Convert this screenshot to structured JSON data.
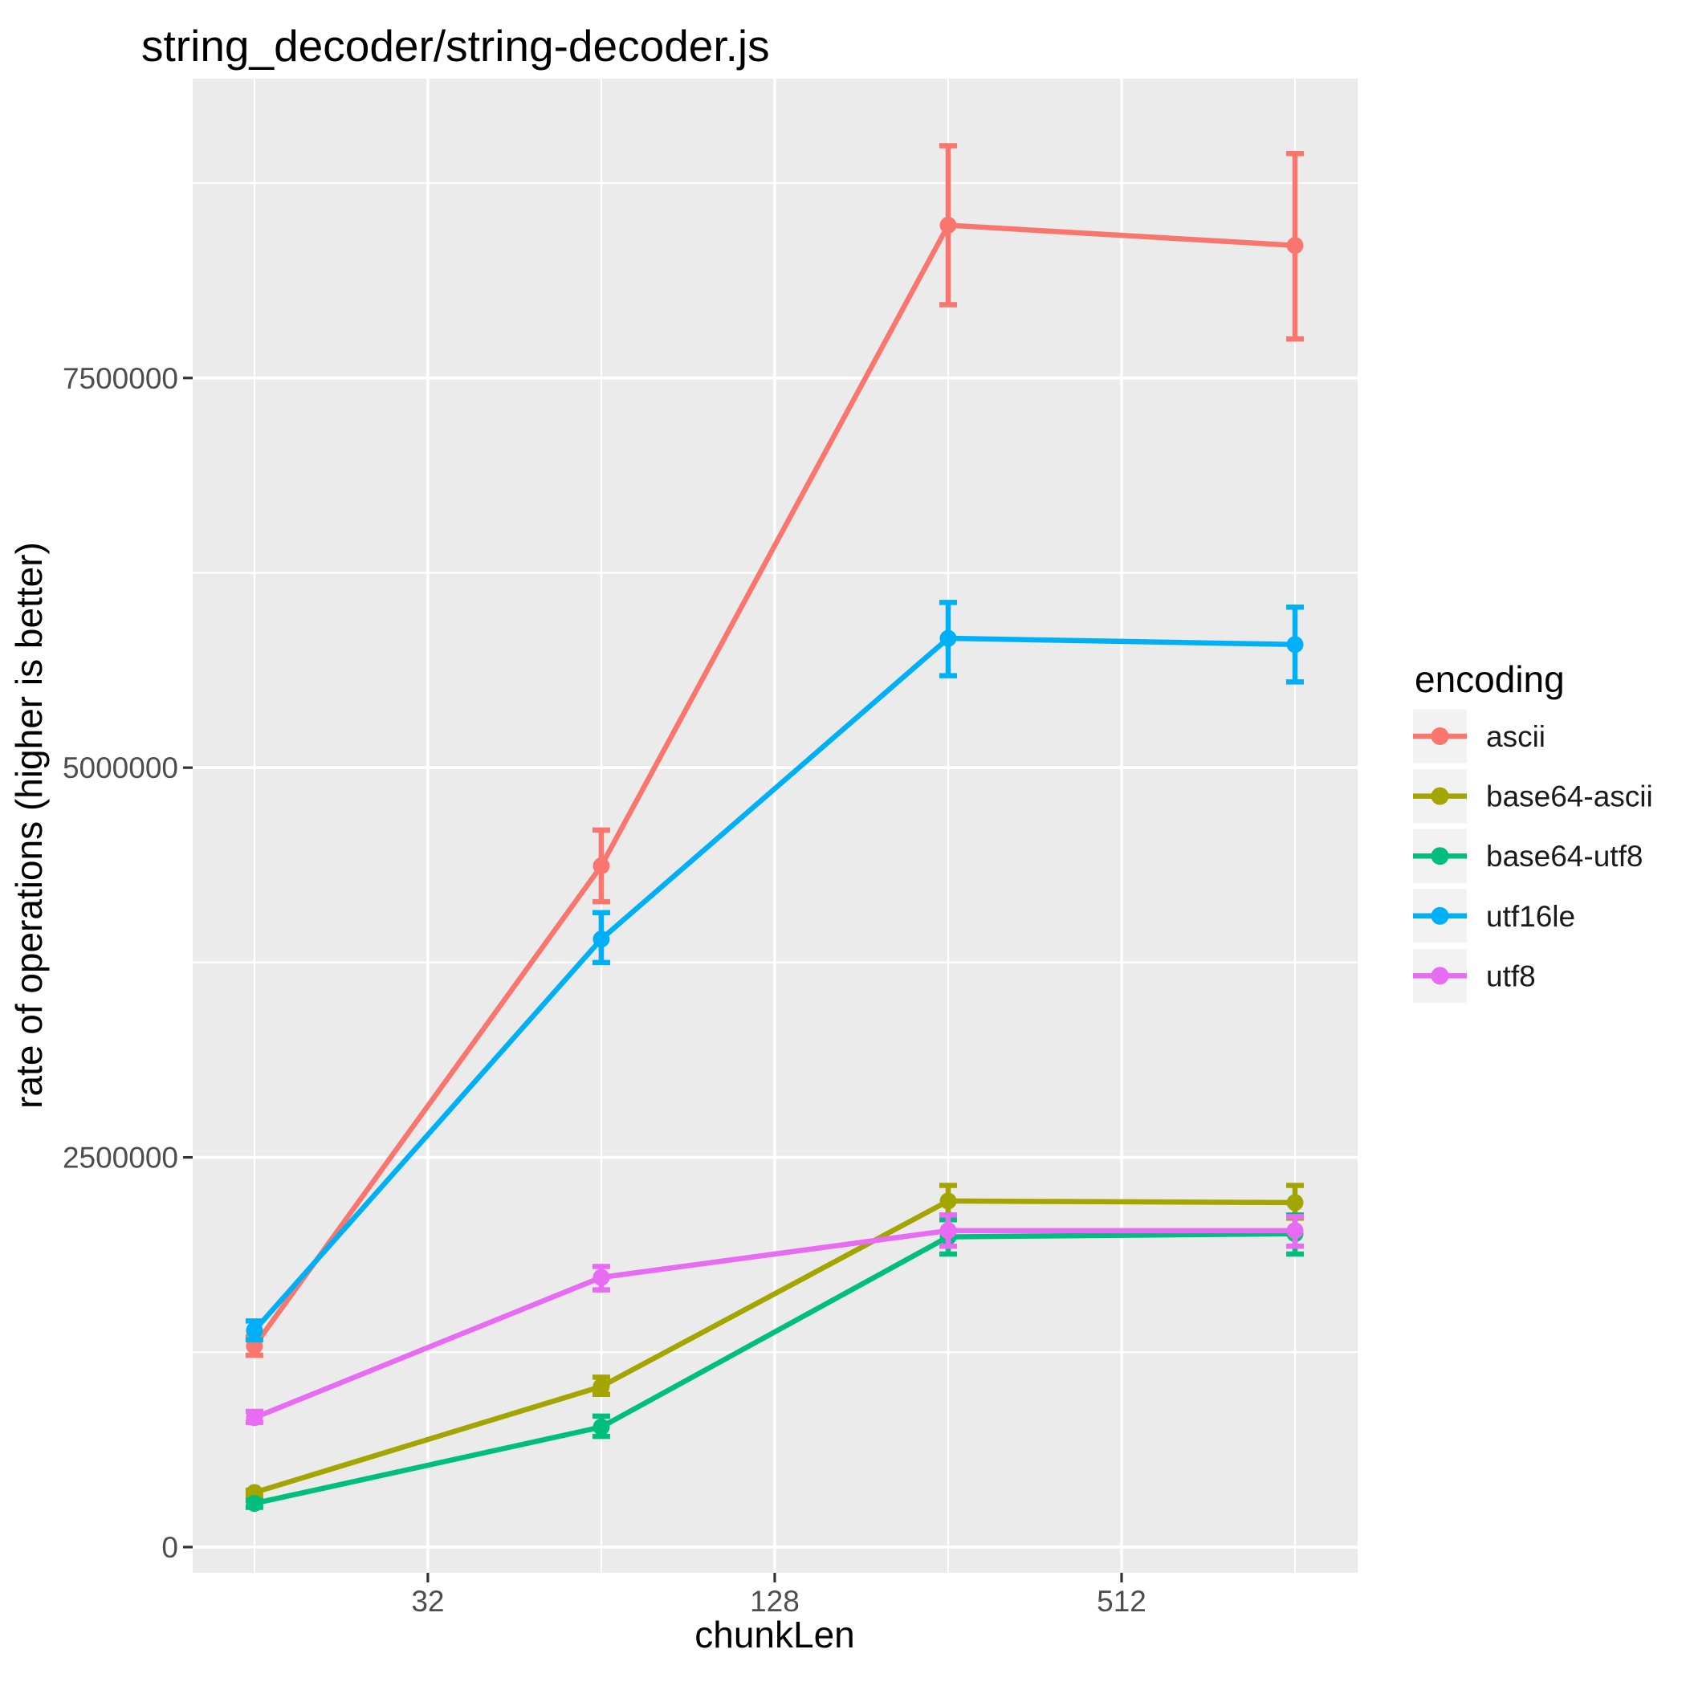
{
  "page": {
    "background": "#FFFFFF"
  },
  "chart_data": {
    "type": "line",
    "title": "string_decoder/string-decoder.js",
    "xlabel": "chunkLen",
    "ylabel": "rate of operations (higher is better)",
    "legend_title": "encoding",
    "legend_position": "right",
    "x_scale": "log2",
    "grid": true,
    "panel_background": "#EBEBEB",
    "gridline_color": "#FFFFFF",
    "legend_key_background": "#F2F2F2",
    "tick_mark_color": "#333333",
    "tick_label_color": "#4D4D4D",
    "x": [
      16,
      64,
      256,
      1024
    ],
    "x_major_ticks": [
      32,
      128,
      512
    ],
    "x_tick_labels": [
      "32",
      "128",
      "512"
    ],
    "x_minor_gridlines": [
      16,
      64,
      256,
      1024
    ],
    "y_major_ticks": [
      0,
      2500000,
      5000000,
      7500000
    ],
    "y_tick_labels": [
      "0",
      "2500000",
      "5000000",
      "7500000"
    ],
    "y_minor_gridlines": [
      1250000,
      3750000,
      6250000,
      8750000
    ],
    "xlim_log2": [
      3.644,
      10.361
    ],
    "ylim": [
      -165000,
      9420000
    ],
    "series": [
      {
        "name": "ascii",
        "color": "#F8766D",
        "values": [
          1290000,
          4370000,
          8480000,
          8350000
        ],
        "err_low": [
          1230000,
          4140000,
          7970000,
          7750000
        ],
        "err_high": [
          1350000,
          4600000,
          8990000,
          8940000
        ]
      },
      {
        "name": "base64-ascii",
        "color": "#A3A500",
        "values": [
          350000,
          1030000,
          2220000,
          2210000
        ],
        "err_low": [
          330000,
          980000,
          2130000,
          2110000
        ],
        "err_high": [
          365000,
          1090000,
          2320000,
          2320000
        ]
      },
      {
        "name": "base64-utf8",
        "color": "#00BF7D",
        "values": [
          280000,
          770000,
          1990000,
          2010000
        ],
        "err_low": [
          255000,
          710000,
          1880000,
          1880000
        ],
        "err_high": [
          300000,
          840000,
          2100000,
          2130000
        ]
      },
      {
        "name": "utf16le",
        "color": "#00B0F6",
        "values": [
          1390000,
          3900000,
          5830000,
          5790000
        ],
        "err_low": [
          1330000,
          3750000,
          5590000,
          5550000
        ],
        "err_high": [
          1450000,
          4070000,
          6060000,
          6030000
        ]
      },
      {
        "name": "utf8",
        "color": "#E76BF3",
        "values": [
          830000,
          1730000,
          2030000,
          2030000
        ],
        "err_low": [
          800000,
          1650000,
          1930000,
          1930000
        ],
        "err_high": [
          870000,
          1800000,
          2130000,
          2120000
        ]
      }
    ]
  }
}
